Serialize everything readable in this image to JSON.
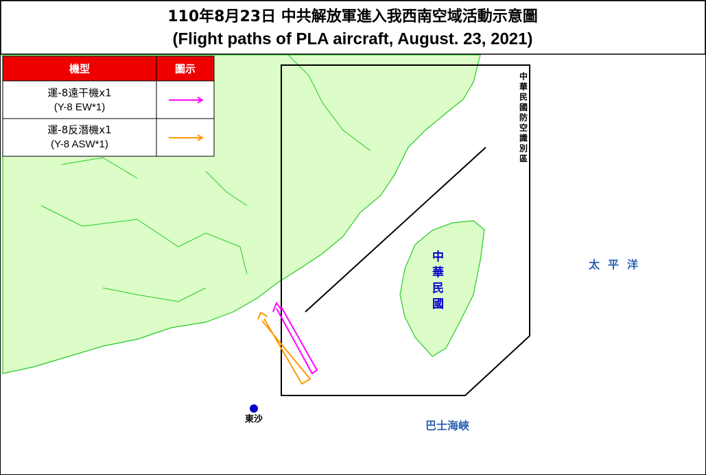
{
  "title": {
    "line1": "110年8月23日 中共解放軍進入我西南空域活動示意圖",
    "line2": "(Flight paths of PLA aircraft, August. 23, 2021)"
  },
  "legend": {
    "headers": [
      "機型",
      "圖示"
    ],
    "rows": [
      {
        "label": "運-8遠干機x1",
        "sublabel": "(Y-8 EW*1)",
        "color": "#ff00ff"
      },
      {
        "label": "運-8反潛機x1",
        "sublabel": "(Y-8 ASW*1)",
        "color": "#ff9900"
      }
    ]
  },
  "labels": {
    "adiz": "中華民國防空識別區",
    "taiwan": "中華民國",
    "pacific": "太平洋",
    "bashi": "巴士海峽",
    "dongsha": "東沙"
  }
}
